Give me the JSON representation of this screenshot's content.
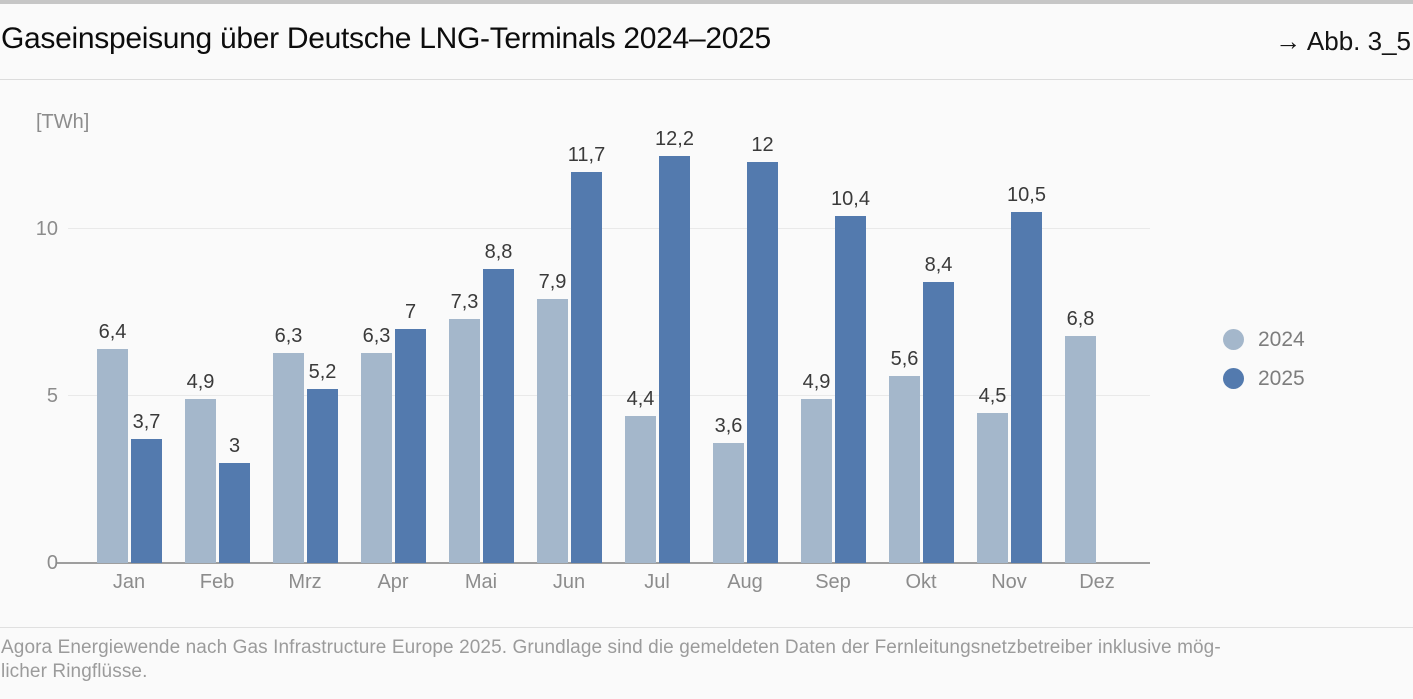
{
  "page": {
    "title": "Gaseinspeisung über Deutsche LNG-Terminals 2024–2025",
    "figure_ref": "→ Abb. 3_5",
    "source_line1": "Agora Energiewende nach Gas Infrastructure Europe 2025. Grundlage sind die gemeldeten Daten der Fernleitungsnetzbetreiber inklusive mög-",
    "source_line2": "licher Ringflüsse."
  },
  "chart_data": {
    "type": "bar",
    "title": "Gaseinspeisung über Deutsche LNG-Terminals 2024–2025",
    "unit_label": "[TWh]",
    "categories": [
      "Jan",
      "Feb",
      "Mrz",
      "Apr",
      "Mai",
      "Jun",
      "Jul",
      "Aug",
      "Sep",
      "Okt",
      "Nov",
      "Dez"
    ],
    "series": [
      {
        "name": "2024",
        "color": "#a4b7cb",
        "values": [
          6.4,
          4.9,
          6.3,
          6.3,
          7.3,
          7.9,
          4.4,
          3.6,
          4.9,
          5.6,
          4.5,
          6.8
        ],
        "labels": [
          "6,4",
          "4,9",
          "6,3",
          "6,3",
          "7,3",
          "7,9",
          "4,4",
          "3,6",
          "4,9",
          "5,6",
          "4,5",
          "6,8"
        ]
      },
      {
        "name": "2025",
        "color": "#537aae",
        "values": [
          3.7,
          3,
          5.2,
          7,
          8.8,
          11.7,
          12.2,
          12,
          10.4,
          8.4,
          10.5,
          null
        ],
        "labels": [
          "3,7",
          "3",
          "5,2",
          "7",
          "8,8",
          "11,7",
          "12,2",
          "12",
          "10,4",
          "8,4",
          "10,5",
          null
        ]
      }
    ],
    "y_ticks": [
      0,
      5,
      10
    ],
    "ylim": [
      0,
      14.4
    ],
    "grid": "horizontal",
    "legend_position": "right",
    "decimal_separator": ","
  }
}
